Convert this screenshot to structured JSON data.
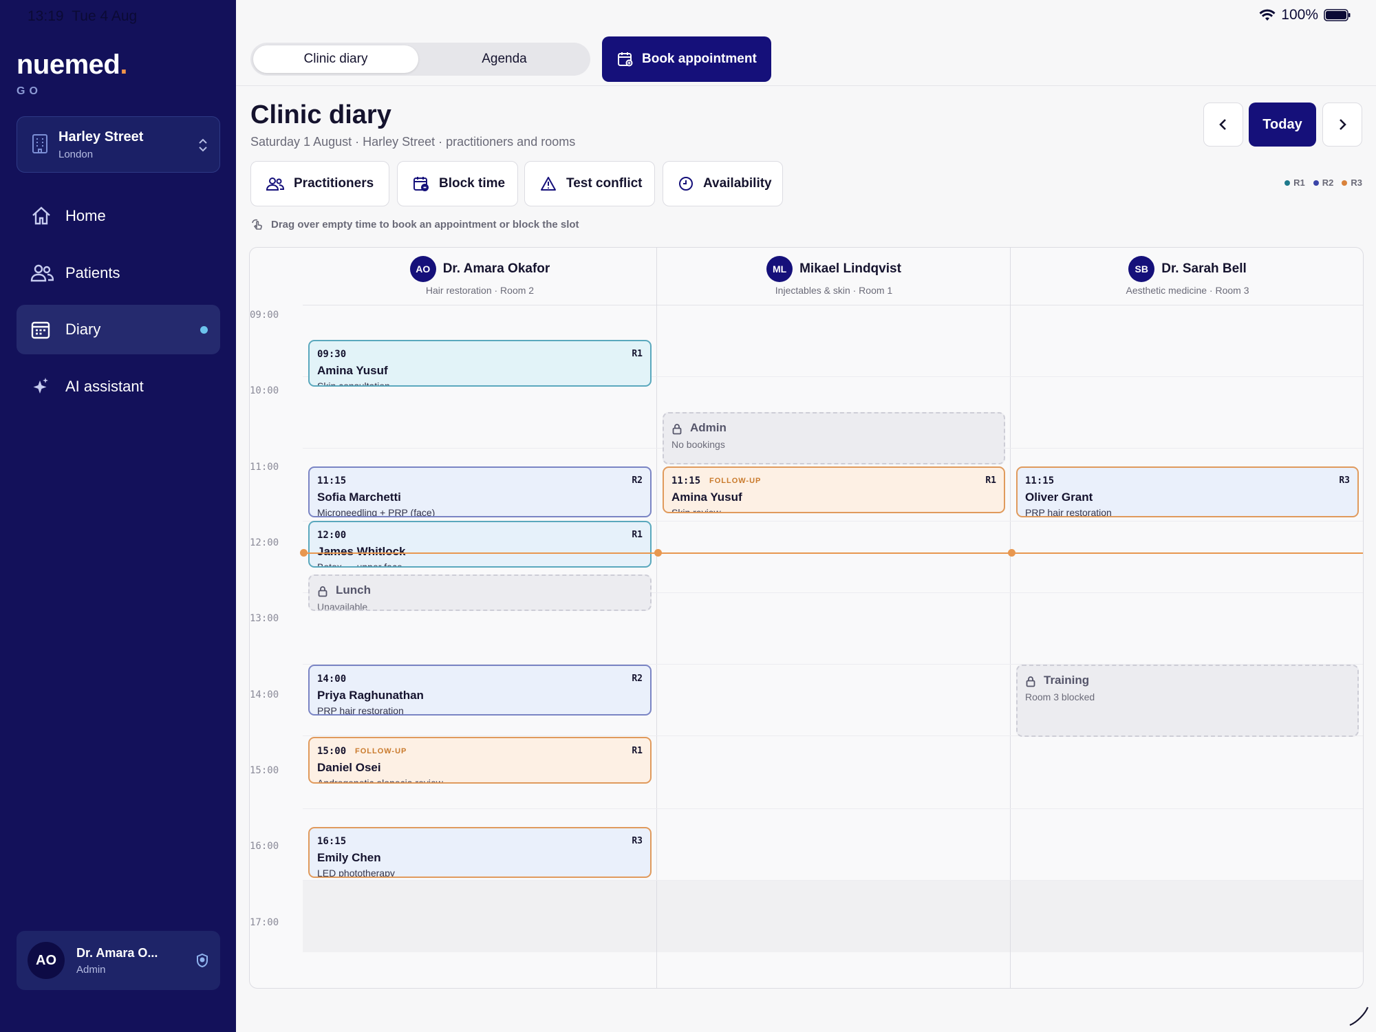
{
  "status": {
    "time": "13:19",
    "date": "Tue 4 Aug",
    "battery": "100%"
  },
  "brand": {
    "name": "nuemed",
    "dot": ".",
    "sub": "GO",
    "accent": "#f0944a"
  },
  "location": {
    "name": "Harley Street",
    "city": "London"
  },
  "nav": [
    {
      "label": "Home",
      "icon": "home-icon"
    },
    {
      "label": "Patients",
      "icon": "users-icon"
    },
    {
      "label": "Diary",
      "icon": "calendar-icon",
      "active": true
    },
    {
      "label": "AI assistant",
      "icon": "sparkle-icon"
    }
  ],
  "user": {
    "initials": "AO",
    "name": "Dr. Amara O...",
    "role": "Admin"
  },
  "tabs": {
    "clinic": "Clinic diary",
    "agenda": "Agenda"
  },
  "book_label": "Book appointment",
  "header": {
    "title": "Clinic diary",
    "subtitle": "Saturday 1 August · Harley Street · practitioners and rooms",
    "today": "Today"
  },
  "tools": {
    "practitioners": "Practitioners",
    "block": "Block time",
    "conflict": "Test conflict",
    "availability": "Availability"
  },
  "legend": [
    {
      "label": "R1",
      "color": "#1f7a8c"
    },
    {
      "label": "R2",
      "color": "#3b45a8"
    },
    {
      "label": "R3",
      "color": "#d9823b"
    }
  ],
  "hint": "Drag over empty time to book an appointment or block the slot",
  "times": [
    "09:00",
    "10:00",
    "11:00",
    "12:00",
    "13:00",
    "14:00",
    "15:00",
    "16:00",
    "17:00"
  ],
  "columns": [
    {
      "initials": "AO",
      "name": "Dr. Amara Okafor",
      "sub": "Hair restoration · Room 2"
    },
    {
      "initials": "ML",
      "name": "Mikael Lindqvist",
      "sub": "Injectables & skin · Room 1"
    },
    {
      "initials": "SB",
      "name": "Dr. Sarah Bell",
      "sub": "Aesthetic medicine · Room 3"
    }
  ],
  "appointments": [
    {
      "time": "09:30",
      "name": "Amina Yusuf",
      "desc": "Skin consultation",
      "room": "R1"
    },
    {
      "time": "11:15",
      "name": "Sofia Marchetti",
      "desc": "Microneedling + PRP (face)",
      "room": "R2"
    },
    {
      "time": "12:00",
      "name": "James Whitlock",
      "desc": "Botox — upper face",
      "room": "R1"
    },
    {
      "time": "14:00",
      "name": "Priya Raghunathan",
      "desc": "PRP hair restoration",
      "room": "R2"
    },
    {
      "time": "15:00",
      "tag": "FOLLOW-UP",
      "name": "Daniel Osei",
      "desc": "Androgenetic alopecia review",
      "room": "R1"
    },
    {
      "time": "16:15",
      "name": "Emily Chen",
      "desc": "LED phototherapy",
      "room": "R3"
    },
    {
      "time": "11:15",
      "tag": "FOLLOW-UP",
      "name": "Amina Yusuf",
      "desc": "Skin review",
      "room": "R1"
    },
    {
      "time": "11:15",
      "name": "Oliver Grant",
      "desc": "PRP hair restoration",
      "room": "R3"
    }
  ],
  "blocks": [
    {
      "name": "Admin",
      "desc": "No bookings"
    },
    {
      "name": "Lunch",
      "desc": "Unavailable"
    },
    {
      "name": "Training",
      "desc": "Room 3 blocked"
    }
  ]
}
